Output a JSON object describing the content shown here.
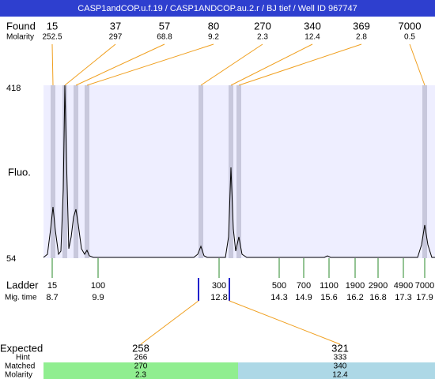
{
  "header": {
    "title": "CASP1andCOP.u.f.19 / CASP1ANDCOP.au.2.r / BJ tief / Well ID 967747"
  },
  "found": {
    "label": "Found",
    "sub_label": "Molarity",
    "sizes": [
      "15",
      "37",
      "57",
      "80",
      "270",
      "340",
      "369",
      "7000"
    ],
    "molarity": [
      "252.5",
      "297",
      "68.8",
      "9.2",
      "2.3",
      "12.4",
      "2.8",
      "0.5"
    ]
  },
  "axis": {
    "top": "418",
    "bottom": "54",
    "label": "Fluo."
  },
  "ladder": {
    "label": "Ladder",
    "sub_label": "Mig. time",
    "sizes": [
      "15",
      "100",
      "300",
      "500",
      "700",
      "1100",
      "1900",
      "2900",
      "4900",
      "7000"
    ],
    "times": [
      "8.7",
      "9.9",
      "12.8",
      "14.3",
      "14.9",
      "15.6",
      "16.2",
      "16.8",
      "17.3",
      "17.9"
    ]
  },
  "expected": {
    "label": "Expected",
    "rows": [
      "Hint",
      "Matched",
      "Molarity"
    ],
    "columns": [
      {
        "expected": "258",
        "hint": "266",
        "matched": "270",
        "molarity": "2.3"
      },
      {
        "expected": "321",
        "hint": "333",
        "matched": "340",
        "molarity": "12.4"
      }
    ]
  }
}
